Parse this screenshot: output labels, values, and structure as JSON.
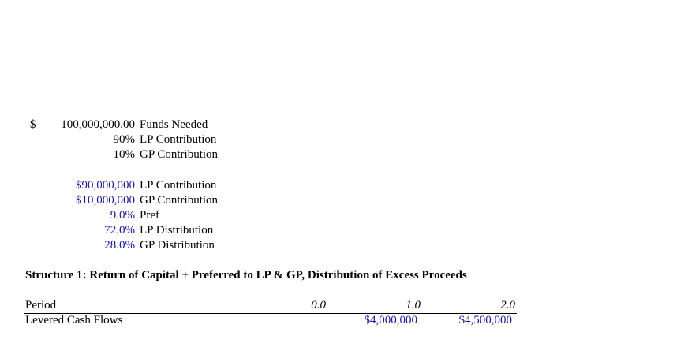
{
  "funding": [
    {
      "currency": "$",
      "value": "100,000,000.00",
      "label": "Funds Needed"
    },
    {
      "value": "90%",
      "label": "LP Contribution"
    },
    {
      "value": "10%",
      "label": "GP Contribution"
    }
  ],
  "assumptions": [
    {
      "value": "$90,000,000",
      "label": "LP Contribution"
    },
    {
      "value": "$10,000,000",
      "label": "GP Contribution"
    },
    {
      "value": "9.0%",
      "label": "Pref"
    },
    {
      "value": "72.0%",
      "label": "LP Distribution"
    },
    {
      "value": "28.0%",
      "label": "GP Distribution"
    }
  ],
  "section_title": "Structure 1: Return of Capital + Preferred to LP & GP, Distribution of Excess Proceeds",
  "table": {
    "header": {
      "label": "Period",
      "periods": [
        "0.0",
        "1.0",
        "2.0"
      ]
    },
    "rows": [
      {
        "label": "Levered Cash Flows",
        "values": [
          null,
          "$4,000,000",
          "$4,500,000"
        ]
      }
    ]
  }
}
